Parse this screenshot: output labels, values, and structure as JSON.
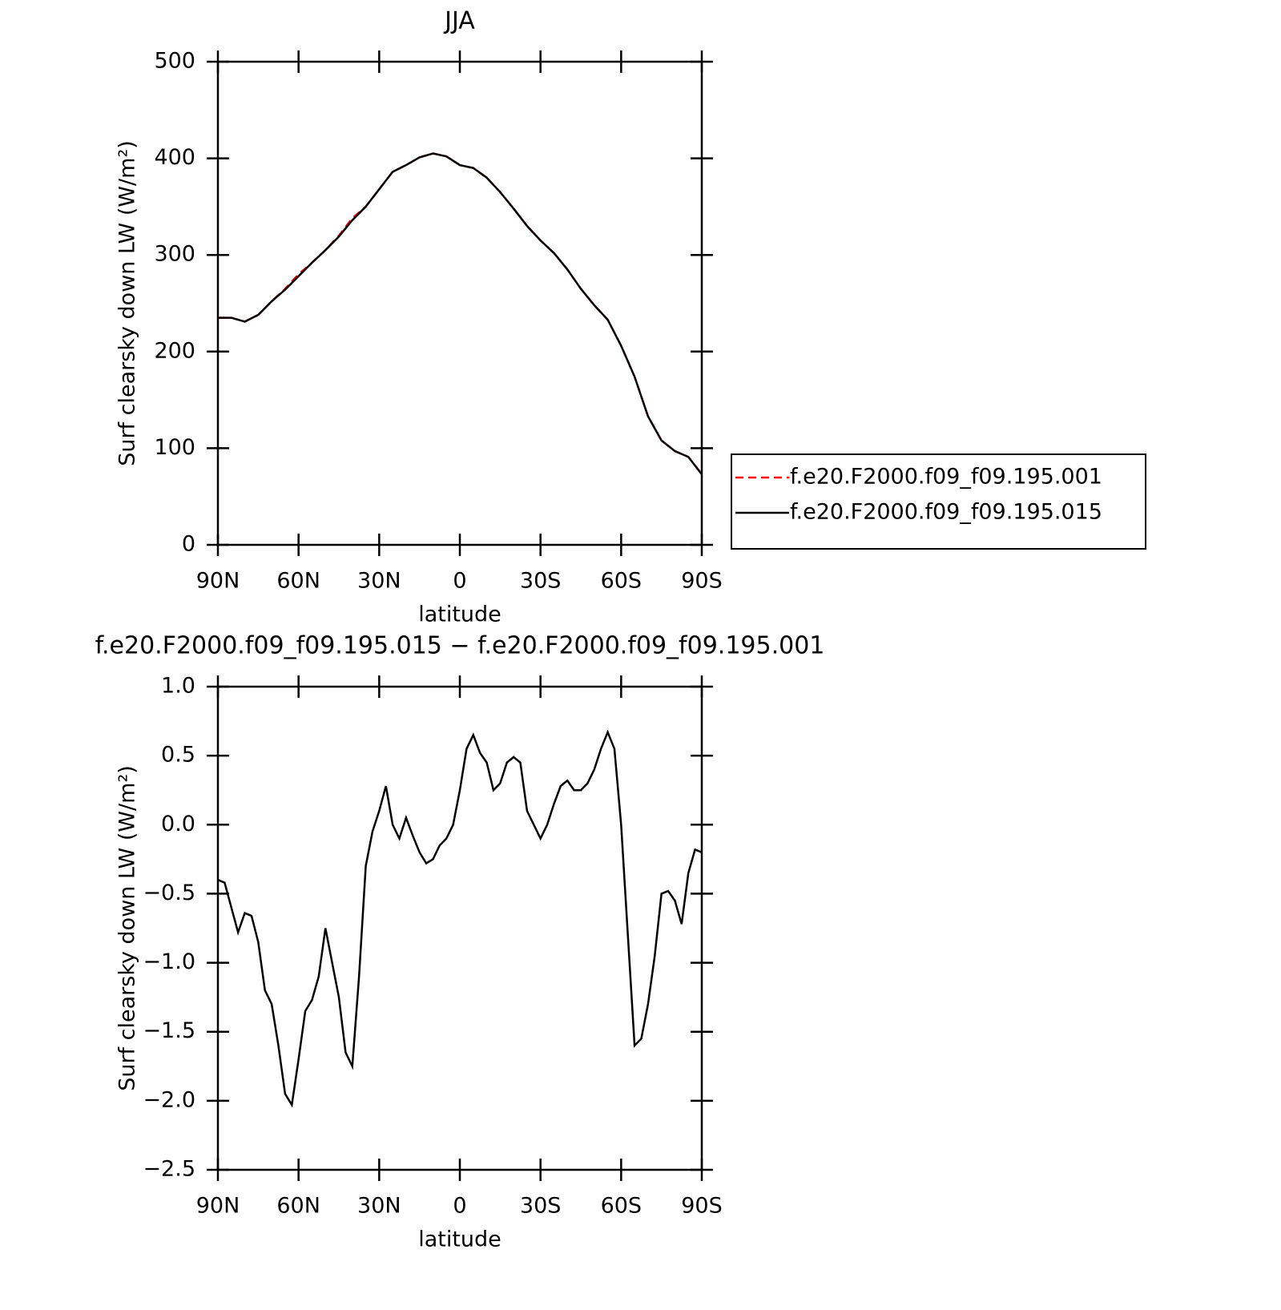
{
  "chart_data": [
    {
      "type": "line",
      "title": "JJA",
      "ylabel": "Surf clearsky down LW (W/m²)",
      "xlabel": "latitude",
      "xlim": [
        90,
        -90
      ],
      "xticks": [
        {
          "value": 90,
          "label": "90N"
        },
        {
          "value": 60,
          "label": "60N"
        },
        {
          "value": 30,
          "label": "30N"
        },
        0,
        {
          "value": -30,
          "label": "30S"
        },
        {
          "value": -60,
          "label": "60S"
        },
        {
          "value": -90,
          "label": "90S"
        }
      ],
      "ylim": [
        0,
        500
      ],
      "yticks": [
        0,
        100,
        200,
        300,
        400,
        500
      ],
      "x": [
        90,
        85,
        80,
        75,
        70,
        65,
        60,
        55,
        50,
        45,
        40,
        35,
        30,
        25,
        20,
        15,
        10,
        5,
        0,
        -5,
        -10,
        -15,
        -20,
        -25,
        -30,
        -35,
        -40,
        -45,
        -50,
        -55,
        -60,
        -65,
        -70,
        -75,
        -80,
        -85,
        -90
      ],
      "legend": "right",
      "series": [
        {
          "name": "f.e20.F2000.f09_f09.195.001",
          "color": "#ff0000",
          "dash": "dashed",
          "values": [
            235,
            235,
            231,
            238,
            252,
            265,
            280,
            292,
            305,
            320,
            338,
            350,
            368,
            386,
            393,
            401,
            405,
            402,
            393,
            390,
            380,
            365,
            348,
            330,
            315,
            302,
            285,
            265,
            248,
            233,
            206,
            174,
            133,
            108,
            97,
            91,
            73
          ]
        },
        {
          "name": "f.e20.F2000.f09_f09.195.015",
          "color": "#000000",
          "dash": "solid",
          "values": [
            235,
            235,
            231,
            238,
            252,
            264,
            278,
            292,
            305,
            319,
            336,
            350,
            368,
            386,
            393,
            401,
            405,
            402,
            393,
            390,
            380,
            365,
            348,
            330,
            315,
            302,
            285,
            265,
            248,
            233,
            206,
            174,
            133,
            108,
            97,
            91,
            73
          ]
        }
      ]
    },
    {
      "type": "line",
      "title": "f.e20.F2000.f09_f09.195.015 − f.e20.F2000.f09_f09.195.001",
      "ylabel": "Surf clearsky down LW (W/m²)",
      "xlabel": "latitude",
      "xlim": [
        90,
        -90
      ],
      "xticks": [
        {
          "value": 90,
          "label": "90N"
        },
        {
          "value": 60,
          "label": "60N"
        },
        {
          "value": 30,
          "label": "30N"
        },
        0,
        {
          "value": -30,
          "label": "30S"
        },
        {
          "value": -60,
          "label": "60S"
        },
        {
          "value": -90,
          "label": "90S"
        }
      ],
      "ylim": [
        -2.5,
        1.0
      ],
      "yticks": [
        {
          "value": -2.5,
          "label": "−2.5"
        },
        {
          "value": -2.0,
          "label": "−2.0"
        },
        {
          "value": -1.5,
          "label": "−1.5"
        },
        {
          "value": -1.0,
          "label": "−1.0"
        },
        {
          "value": -0.5,
          "label": "−0.5"
        },
        {
          "value": 0,
          "label": "0.0"
        },
        0.5,
        {
          "value": 1.0,
          "label": "1.0"
        }
      ],
      "x": [
        90,
        87.5,
        85,
        82.5,
        80,
        77.5,
        75,
        72.5,
        70,
        67.5,
        65,
        62.5,
        60,
        57.5,
        55,
        52.5,
        50,
        47.5,
        45,
        42.5,
        40,
        37.5,
        35,
        32.5,
        30,
        27.5,
        25,
        22.5,
        20,
        17.5,
        15,
        12.5,
        10,
        7.5,
        5,
        2.5,
        0,
        -2.5,
        -5,
        -7.5,
        -10,
        -12.5,
        -15,
        -17.5,
        -20,
        -22.5,
        -25,
        -27.5,
        -30,
        -32.5,
        -35,
        -37.5,
        -40,
        -42.5,
        -45,
        -47.5,
        -50,
        -52.5,
        -55,
        -57.5,
        -60,
        -62.5,
        -65,
        -67.5,
        -70,
        -72.5,
        -75,
        -77.5,
        -80,
        -82.5,
        -85,
        -87.5,
        -90
      ],
      "series": [
        {
          "color": "#000000",
          "dash": "solid",
          "values": [
            -0.4,
            -0.42,
            -0.6,
            -0.78,
            -0.64,
            -0.66,
            -0.85,
            -1.2,
            -1.3,
            -1.6,
            -1.95,
            -2.03,
            -1.7,
            -1.35,
            -1.27,
            -1.1,
            -0.75,
            -1.0,
            -1.25,
            -1.65,
            -1.75,
            -1.1,
            -0.3,
            -0.05,
            0.1,
            0.28,
            0.0,
            -0.1,
            0.05,
            -0.08,
            -0.2,
            -0.28,
            -0.25,
            -0.15,
            -0.1,
            0.0,
            0.25,
            0.55,
            0.65,
            0.52,
            0.45,
            0.25,
            0.3,
            0.45,
            0.49,
            0.45,
            0.1,
            0.0,
            -0.1,
            0.0,
            0.15,
            0.28,
            0.32,
            0.25,
            0.25,
            0.3,
            0.4,
            0.55,
            0.67,
            0.55,
            0.0,
            -0.8,
            -1.6,
            -1.55,
            -1.3,
            -0.95,
            -0.5,
            -0.48,
            -0.55,
            -0.72,
            -0.35,
            -0.18,
            -0.2
          ]
        }
      ]
    }
  ]
}
